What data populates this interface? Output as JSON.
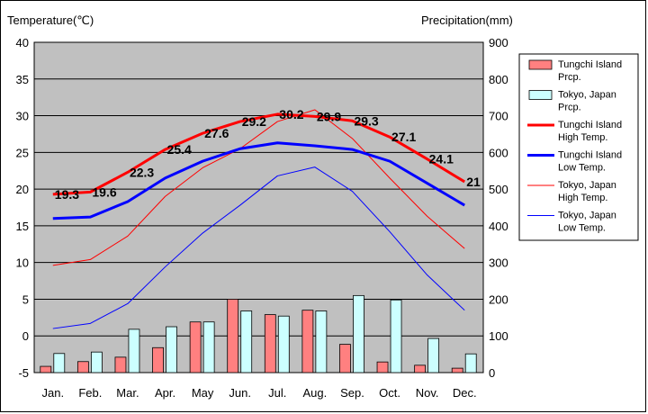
{
  "chart_data": {
    "type": "bar",
    "categories": [
      "Jan.",
      "Feb.",
      "Mar.",
      "Apr.",
      "May",
      "Jun.",
      "Jul.",
      "Aug.",
      "Sep.",
      "Oct.",
      "Nov.",
      "Dec."
    ],
    "y_left": {
      "label": "Temperature(℃)",
      "range": [
        -5,
        40
      ],
      "ticks": [
        -5,
        0,
        5,
        10,
        15,
        20,
        25,
        30,
        35,
        40
      ]
    },
    "y_right": {
      "label": "Precipitation(mm)",
      "range": [
        0,
        900
      ],
      "ticks": [
        0,
        100,
        200,
        300,
        400,
        500,
        600,
        700,
        800,
        900
      ]
    },
    "grid": true,
    "legend": "right",
    "series": [
      {
        "name": "Tungchi Island Prcp.",
        "type": "bar",
        "axis": "right",
        "color": "#ff8080",
        "values": [
          17,
          30,
          42,
          68,
          138,
          200,
          158,
          170,
          77,
          29,
          20,
          12
        ]
      },
      {
        "name": "Tokyo, Japan Prcp.",
        "type": "bar",
        "axis": "right",
        "color": "#ccffff",
        "values": [
          52,
          56,
          118,
          125,
          138,
          168,
          154,
          168,
          210,
          198,
          93,
          51
        ]
      },
      {
        "name": "Tungchi Island High Temp.",
        "type": "line",
        "axis": "left",
        "color": "#ff0000",
        "values": [
          19.3,
          19.6,
          22.3,
          25.4,
          27.6,
          29.2,
          30.2,
          29.9,
          29.3,
          27.1,
          24.1,
          21
        ]
      },
      {
        "name": "Tungchi Island Low Temp.",
        "type": "line",
        "axis": "left",
        "color": "#0000ff",
        "values": [
          16,
          16.2,
          18.3,
          21.5,
          23.8,
          25.5,
          26.3,
          25.9,
          25.4,
          23.8,
          20.8,
          17.8
        ]
      },
      {
        "name": "Tokyo, Japan High Temp.",
        "type": "line",
        "axis": "left",
        "color": "#ff0000",
        "values": [
          9.6,
          10.4,
          13.6,
          19.0,
          22.9,
          25.5,
          29.2,
          30.8,
          26.9,
          21.5,
          16.3,
          11.9
        ]
      },
      {
        "name": "Tokyo, Japan Low Temp.",
        "type": "line",
        "axis": "left",
        "color": "#0000ff",
        "values": [
          1.0,
          1.7,
          4.4,
          9.4,
          14.0,
          17.8,
          21.8,
          23.0,
          19.7,
          14.2,
          8.3,
          3.5
        ]
      }
    ],
    "legend_entries": [
      {
        "line1": "Tungchi Island",
        "line2": "Prcp."
      },
      {
        "line1": "Tokyo, Japan",
        "line2": "Prcp."
      },
      {
        "line1": "Tungchi Island",
        "line2": "High Temp."
      },
      {
        "line1": "Tungchi Island",
        "line2": "Low Temp."
      },
      {
        "line1": "Tokyo, Japan",
        "line2": "High Temp."
      },
      {
        "line1": "Tokyo, Japan",
        "line2": "Low Temp."
      }
    ],
    "data_labels": [
      "19.3",
      "19.6",
      "22.3",
      "25.4",
      "27.6",
      "29.2",
      "30.2",
      "29.9",
      "29.3",
      "27.1",
      "24.1",
      "21"
    ]
  }
}
